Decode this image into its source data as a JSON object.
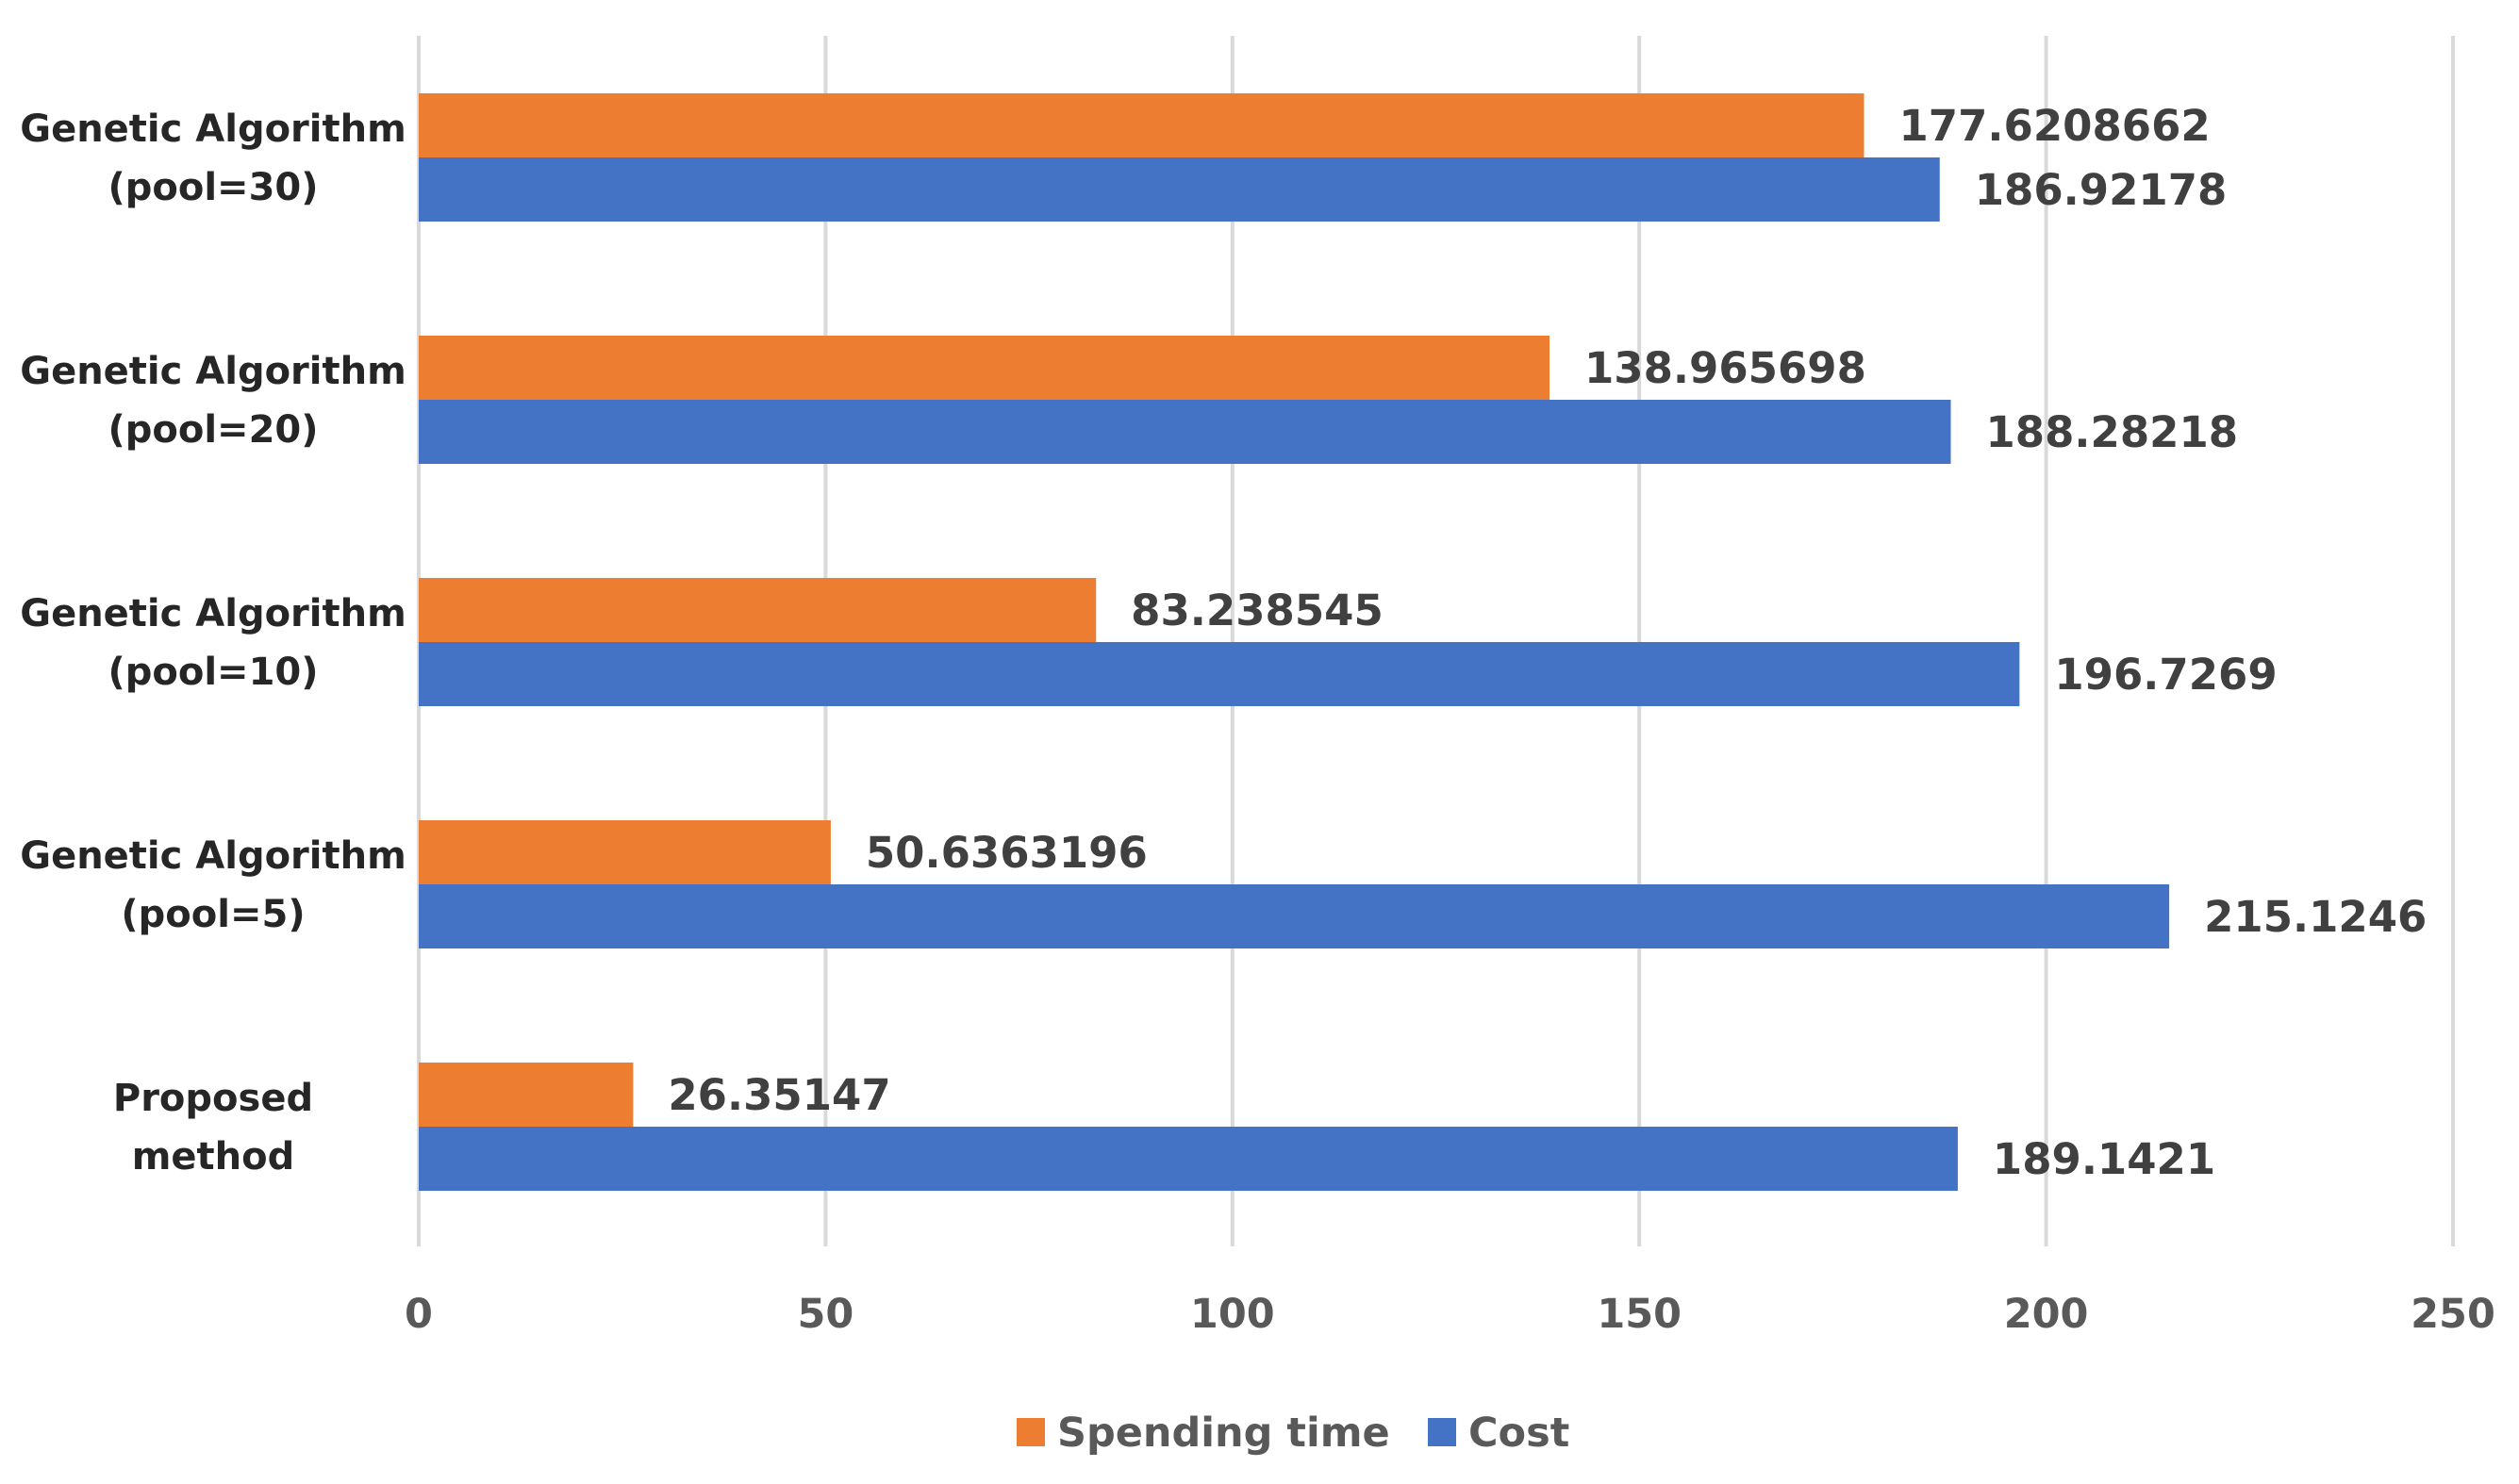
{
  "chart_data": {
    "type": "bar",
    "orientation": "horizontal",
    "title": "",
    "xlabel": "",
    "ylabel": "",
    "xlim": [
      0,
      250
    ],
    "x_ticks": [
      0,
      50,
      100,
      150,
      200,
      250
    ],
    "grid": true,
    "legend_position": "bottom",
    "categories": [
      [
        "Genetic Algorithm",
        "(pool=30)"
      ],
      [
        "Genetic Algorithm",
        "(pool=20)"
      ],
      [
        "Genetic Algorithm",
        "(pool=10)"
      ],
      [
        "Genetic Algorithm",
        "(pool=5)"
      ],
      [
        "Proposed",
        "method"
      ]
    ],
    "series": [
      {
        "name": "Spending time",
        "color": "#ED7D31",
        "values": [
          177.6208662,
          138.965698,
          83.238545,
          50.6363196,
          26.35147
        ],
        "labels": [
          "177.6208662",
          "138.965698",
          "83.238545",
          "50.6363196",
          "26.35147"
        ]
      },
      {
        "name": "Cost",
        "color": "#4472C4",
        "values": [
          186.92178,
          188.28218,
          196.7269,
          215.1246,
          189.1421
        ],
        "labels": [
          "186.92178",
          "188.28218",
          "196.7269",
          "215.1246",
          "189.1421"
        ]
      }
    ],
    "gridline_color": "#D9D9D9"
  }
}
